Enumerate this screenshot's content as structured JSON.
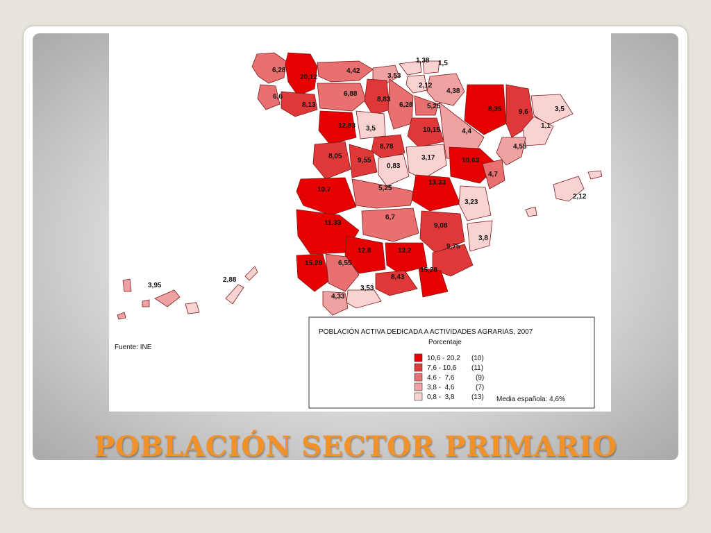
{
  "slide": {
    "title": "POBLACIÓN SECTOR PRIMARIO"
  },
  "map": {
    "source": "Fuente: INE",
    "legend": {
      "title": "POBLACIÓN ACTIVA DEDICADA A ACTIVIDADES AGRARIAS, 2007",
      "subtitle": "Porcentaje",
      "classes": [
        {
          "range": "10,6 - 20,2",
          "count": "(10)",
          "color": "#e60000"
        },
        {
          "range": "7,6 - 10,6",
          "count": "(11)",
          "color": "#e03838"
        },
        {
          "range": "4,6 -  7,6",
          "count": "(9)",
          "color": "#e87070"
        },
        {
          "range": "3,8 -  4,6",
          "count": "(7)",
          "color": "#f0a2a2"
        },
        {
          "range": "0,8 -  3,8",
          "count": "(13)",
          "color": "#f9d2d2"
        }
      ],
      "note": "Media española: 4,6%"
    },
    "values": {
      "coruna": "6,28",
      "lugo": "20,12",
      "asturias": "4,42",
      "cantabria": "3,53",
      "vizcaya": "1,38",
      "guipuzcoa": "1,5",
      "alava": "2,12",
      "navarra": "4,38",
      "pontevedra": "6,6",
      "ourense": "8,13",
      "leon": "6,88",
      "palencia": "8,83",
      "burgos": "6,28",
      "larioja": "5,25",
      "huesca": "8,35",
      "lleida": "9,6",
      "girona": "3,5",
      "zamora": "12,83",
      "valladolid": "3,5",
      "soria": "10,15",
      "zaragoza": "4,4",
      "barcelona": "1,1",
      "tarragona": "4,55",
      "salamanca": "8,05",
      "segovia": "8,78",
      "avila": "9,55",
      "madrid": "0,83",
      "guadalajara": "3,17",
      "teruel": "10,63",
      "castellon": "4,7",
      "caceres": "10,7",
      "toledo": "5,25",
      "cuenca": "13,33",
      "valencia": "3,23",
      "baleares": "2,12",
      "badajoz": "11,33",
      "ciudadreal": "6,7",
      "albacete": "9,08",
      "alicante": "3,8",
      "cordoba": "12,8",
      "jaen": "13,2",
      "murcia": "9,75",
      "huelva": "15,28",
      "sevilla": "6,55",
      "granada": "8,43",
      "almeria": "15,28",
      "malaga": "3,53",
      "cadiz": "4,33",
      "tenerife": "3,95",
      "laspalmas": "2,88"
    }
  }
}
